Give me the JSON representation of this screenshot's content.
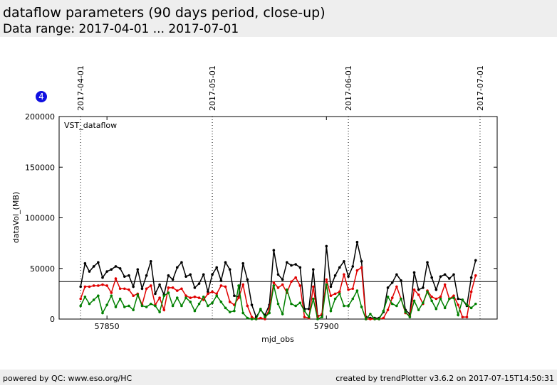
{
  "header": {
    "title": "dataflow parameters (90 days period, close-up)",
    "subtitle": "Data range: 2017-04-01 ... 2017-07-01"
  },
  "badge": "4",
  "footer": {
    "left": "powered by QC: www.eso.org/HC",
    "right": "created by trendPlotter v3.6.2 on 2017-07-15T14:50:31"
  },
  "chart_data": {
    "type": "line",
    "label": "VST_dataflow",
    "xlabel": "mjd_obs",
    "ylabel": "dataVol_(MB)",
    "xlim": [
      57839.1,
      57938.9
    ],
    "xticks": [
      57850,
      57900
    ],
    "ylim": [
      0,
      200000
    ],
    "yticks": [
      0,
      50000,
      100000,
      150000,
      200000
    ],
    "hline": 37000,
    "vlines": [
      {
        "value": 57844,
        "label": "2017-04-01"
      },
      {
        "value": 57874,
        "label": "2017-05-01"
      },
      {
        "value": 57905,
        "label": "2017-06-01"
      },
      {
        "value": 57935,
        "label": "2017-07-01"
      }
    ],
    "x": [
      57844,
      57845,
      57846,
      57847,
      57848,
      57849,
      57850,
      57851,
      57852,
      57853,
      57854,
      57855,
      57856,
      57857,
      57858,
      57859,
      57860,
      57861,
      57862,
      57863,
      57864,
      57865,
      57866,
      57867,
      57868,
      57869,
      57870,
      57871,
      57872,
      57873,
      57874,
      57875,
      57876,
      57877,
      57878,
      57879,
      57880,
      57881,
      57882,
      57883,
      57884,
      57885,
      57886,
      57887,
      57888,
      57889,
      57890,
      57891,
      57892,
      57893,
      57894,
      57895,
      57896,
      57897,
      57898,
      57899,
      57900,
      57901,
      57902,
      57903,
      57904,
      57905,
      57906,
      57907,
      57908,
      57909,
      57910,
      57911,
      57912,
      57913,
      57914,
      57915,
      57916,
      57917,
      57918,
      57919,
      57920,
      57921,
      57922,
      57923,
      57924,
      57925,
      57926,
      57927,
      57928,
      57929,
      57930,
      57931,
      57932,
      57933,
      57934
    ],
    "series": [
      {
        "color": "#000000",
        "values": [
          32000,
          55000,
          47000,
          52000,
          56000,
          41000,
          47000,
          49000,
          52000,
          50000,
          42000,
          43000,
          32000,
          49000,
          30000,
          43000,
          57000,
          25000,
          34000,
          24000,
          43000,
          39000,
          51000,
          56000,
          42000,
          44000,
          31000,
          35000,
          44000,
          27000,
          44000,
          51000,
          38000,
          56000,
          49000,
          23000,
          22000,
          55000,
          39000,
          14000,
          2000,
          9000,
          4000,
          14000,
          68000,
          44000,
          39000,
          56000,
          53000,
          54000,
          51000,
          10000,
          10000,
          49000,
          3000,
          4000,
          72000,
          32000,
          43000,
          51000,
          57000,
          42000,
          52000,
          76000,
          57000,
          2000,
          1000,
          1000,
          1000,
          7000,
          31000,
          36000,
          44000,
          38000,
          9000,
          5000,
          46000,
          29000,
          31000,
          56000,
          41000,
          29000,
          42000,
          44000,
          40000,
          44000,
          20000,
          19000,
          13000,
          41000,
          58000
        ]
      },
      {
        "color": "#e00000",
        "values": [
          20000,
          32000,
          32000,
          33000,
          33000,
          34000,
          33000,
          26000,
          40000,
          30000,
          30000,
          29000,
          23000,
          25000,
          14000,
          30000,
          33000,
          14000,
          21000,
          9000,
          31000,
          31000,
          28000,
          30000,
          23000,
          21000,
          22000,
          21000,
          19000,
          25000,
          27000,
          25000,
          33000,
          32000,
          17000,
          14000,
          21000,
          34000,
          13000,
          2000,
          0,
          1000,
          0,
          10000,
          36000,
          31000,
          34000,
          26000,
          37000,
          41000,
          33000,
          2000,
          1000,
          32000,
          2000,
          5000,
          39000,
          23000,
          25000,
          27000,
          44000,
          29000,
          30000,
          48000,
          51000,
          0,
          0,
          0,
          0,
          1000,
          9000,
          21000,
          32000,
          20000,
          6000,
          3000,
          29000,
          24000,
          15000,
          28000,
          22000,
          20000,
          22000,
          34000,
          20000,
          23000,
          14000,
          2000,
          2000,
          27000,
          43000
        ]
      },
      {
        "color": "#008000",
        "values": [
          13000,
          22000,
          15000,
          19000,
          23000,
          6000,
          14000,
          23000,
          12000,
          20000,
          12000,
          13000,
          9000,
          24000,
          13000,
          12000,
          15000,
          13000,
          7000,
          23000,
          26000,
          13000,
          21000,
          13000,
          21000,
          17000,
          8000,
          15000,
          22000,
          13000,
          16000,
          23000,
          17000,
          11000,
          7000,
          8000,
          33000,
          6000,
          1000,
          0,
          0,
          10000,
          2000,
          6000,
          33000,
          15000,
          5000,
          29000,
          15000,
          13000,
          16000,
          8000,
          2000,
          20000,
          0,
          2000,
          34000,
          8000,
          20000,
          25000,
          13000,
          13000,
          20000,
          28000,
          12000,
          0,
          5000,
          0,
          0,
          8000,
          22000,
          15000,
          13000,
          20000,
          7000,
          2000,
          18000,
          9000,
          16000,
          27000,
          18000,
          10000,
          20000,
          11000,
          20000,
          21000,
          4000,
          19000,
          14000,
          11000,
          15000
        ]
      }
    ]
  }
}
